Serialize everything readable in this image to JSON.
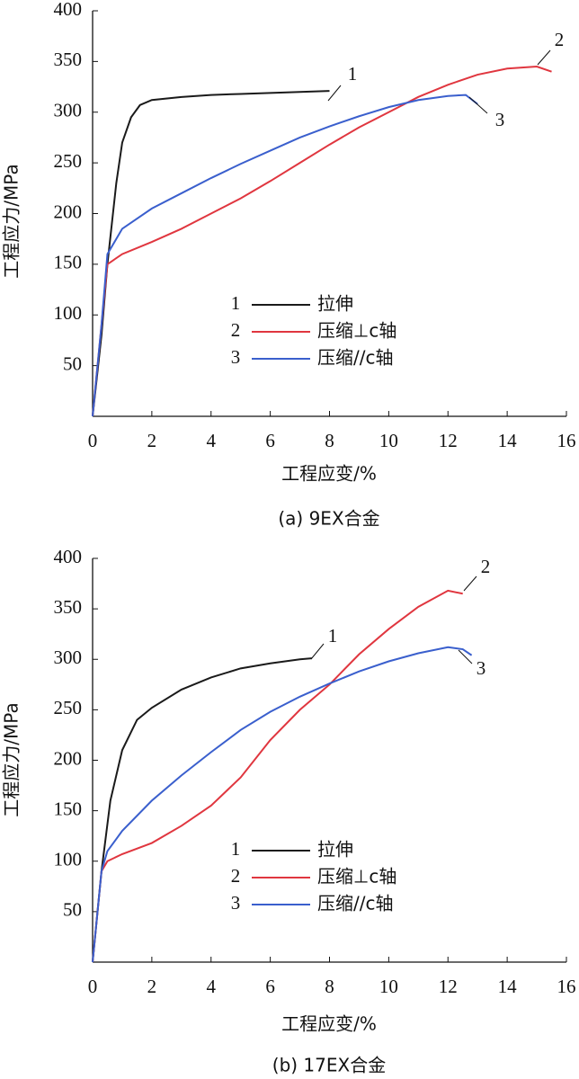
{
  "chart_data": [
    {
      "type": "line",
      "caption": "(a) 9EX合金",
      "x_label": "工程应变/%",
      "y_label": "工程应力/MPa",
      "xlim": [
        0,
        16
      ],
      "xticks": [
        0,
        2,
        4,
        6,
        8,
        10,
        12,
        14,
        16
      ],
      "ylim": [
        0,
        400
      ],
      "yticks": [
        50,
        100,
        150,
        200,
        250,
        300,
        350,
        400
      ],
      "series": [
        {
          "name": "拉伸",
          "marker": "1",
          "color": "#1a1a1a",
          "x": [
            0,
            0.3,
            0.5,
            0.8,
            1.0,
            1.3,
            1.6,
            2,
            3,
            4,
            5,
            6,
            7,
            8
          ],
          "values": [
            0,
            80,
            150,
            230,
            270,
            295,
            307,
            312,
            315,
            317,
            318,
            319,
            320,
            321
          ]
        },
        {
          "name": "压缩⊥c轴",
          "marker": "2",
          "color": "#e0363f",
          "x": [
            0,
            0.3,
            0.5,
            1,
            2,
            3,
            4,
            5,
            6,
            7,
            8,
            9,
            10,
            11,
            12,
            13,
            14,
            15,
            15.5
          ],
          "values": [
            0,
            90,
            150,
            160,
            172,
            185,
            200,
            215,
            232,
            250,
            268,
            285,
            300,
            315,
            327,
            337,
            343,
            345,
            340
          ]
        },
        {
          "name": "压缩//c轴",
          "marker": "3",
          "color": "#3a5fcd",
          "x": [
            0,
            0.3,
            0.5,
            1,
            2,
            3,
            4,
            5,
            6,
            7,
            8,
            9,
            10,
            11,
            12,
            12.6,
            13
          ],
          "values": [
            0,
            90,
            160,
            185,
            205,
            220,
            235,
            249,
            262,
            275,
            286,
            296,
            305,
            312,
            316,
            317,
            308
          ]
        }
      ],
      "annotations": [
        "1",
        "2",
        "3"
      ]
    },
    {
      "type": "line",
      "caption": "(b) 17EX合金",
      "x_label": "工程应变/%",
      "y_label": "工程应力/MPa",
      "xlim": [
        0,
        16
      ],
      "xticks": [
        0,
        2,
        4,
        6,
        8,
        10,
        12,
        14,
        16
      ],
      "ylim": [
        0,
        400
      ],
      "yticks": [
        50,
        100,
        150,
        200,
        250,
        300,
        350,
        400
      ],
      "series": [
        {
          "name": "拉伸",
          "marker": "1",
          "color": "#1a1a1a",
          "x": [
            0,
            0.3,
            0.6,
            1,
            1.5,
            2,
            3,
            4,
            5,
            6,
            7,
            7.4
          ],
          "values": [
            0,
            90,
            160,
            210,
            240,
            252,
            270,
            282,
            291,
            296,
            300,
            301
          ]
        },
        {
          "name": "压缩⊥c轴",
          "marker": "2",
          "color": "#e0363f",
          "x": [
            0,
            0.3,
            0.5,
            1,
            2,
            3,
            4,
            5,
            6,
            7,
            8,
            9,
            10,
            11,
            12,
            12.5
          ],
          "values": [
            0,
            90,
            100,
            107,
            118,
            135,
            155,
            183,
            220,
            250,
            275,
            305,
            330,
            352,
            368,
            365
          ]
        },
        {
          "name": "压缩//c轴",
          "marker": "3",
          "color": "#3a5fcd",
          "x": [
            0,
            0.3,
            0.5,
            1,
            2,
            3,
            4,
            5,
            6,
            7,
            8,
            9,
            10,
            11,
            12,
            12.5,
            12.8
          ],
          "values": [
            0,
            90,
            110,
            130,
            160,
            185,
            208,
            230,
            248,
            263,
            276,
            288,
            298,
            306,
            312,
            310,
            304
          ]
        }
      ],
      "annotations": [
        "1",
        "2",
        "3"
      ]
    }
  ]
}
